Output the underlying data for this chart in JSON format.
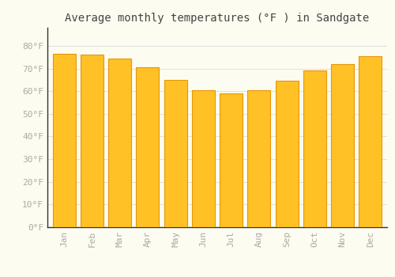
{
  "title": "Average monthly temperatures (°F ) in Sandgate",
  "months": [
    "Jan",
    "Feb",
    "Mar",
    "Apr",
    "May",
    "Jun",
    "Jul",
    "Aug",
    "Sep",
    "Oct",
    "Nov",
    "Dec"
  ],
  "values": [
    76.5,
    76.0,
    74.5,
    70.5,
    65.0,
    60.5,
    59.0,
    60.5,
    64.5,
    69.0,
    72.0,
    75.5
  ],
  "bar_color_face": "#FFC125",
  "bar_color_edge": "#E8960A",
  "background_color": "#FDFCF0",
  "grid_color": "#E0E0E0",
  "tick_label_color": "#AAAAAA",
  "title_color": "#444444",
  "ylim": [
    0,
    88
  ],
  "yticks": [
    0,
    10,
    20,
    30,
    40,
    50,
    60,
    70,
    80
  ],
  "ytick_labels": [
    "0°F",
    "10°F",
    "20°F",
    "30°F",
    "40°F",
    "50°F",
    "60°F",
    "70°F",
    "80°F"
  ],
  "title_fontsize": 10,
  "tick_fontsize": 8,
  "bar_width": 0.82,
  "left_spine_color": "#333333"
}
